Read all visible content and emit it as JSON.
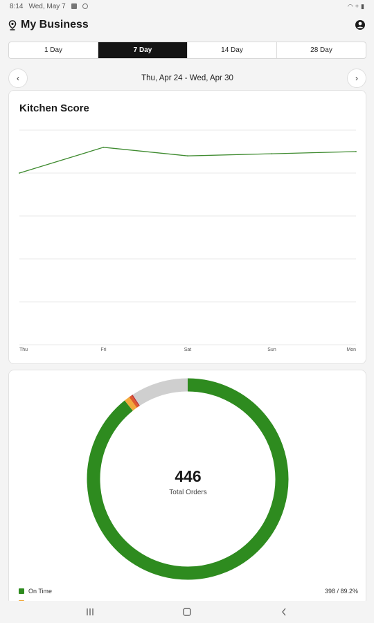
{
  "status": {
    "time": "8:14",
    "date": "Wed, May 7"
  },
  "header": {
    "title": "My Business"
  },
  "tabs": [
    {
      "label": "1 Day",
      "active": false
    },
    {
      "label": "7 Day",
      "active": true
    },
    {
      "label": "14 Day",
      "active": false
    },
    {
      "label": "28 Day",
      "active": false
    }
  ],
  "range": {
    "label": "Thu, Apr 24 - Wed, Apr 30"
  },
  "kitchen_card": {
    "title": "Kitchen Score"
  },
  "orders_card": {
    "total": "446",
    "total_label": "Total Orders",
    "legend": [
      {
        "label": "On Time",
        "value": "398 / 89.2%",
        "color": "#2e8b1f"
      }
    ]
  },
  "chart_data": [
    {
      "type": "line",
      "title": "Kitchen Score",
      "categories": [
        "Thu",
        "Fri",
        "Sat",
        "Sun",
        "Mon"
      ],
      "series": [
        {
          "values": [
            0.8,
            0.92,
            0.88,
            0.89,
            0.9
          ],
          "color": "#3d8a2e"
        }
      ],
      "ylim": [
        0,
        1
      ],
      "grid": true
    },
    {
      "type": "pie",
      "donut": true,
      "total": 446,
      "slices": [
        {
          "label": "On Time",
          "value": 398,
          "color": "#2e8b1f"
        },
        {
          "value": 4,
          "color": "#f2a93b"
        },
        {
          "value": 2,
          "color": "#e05a2b"
        },
        {
          "value": 1,
          "color": "#c23a3a"
        },
        {
          "value": 41,
          "color": "#cfcfcf"
        }
      ]
    }
  ],
  "colors": {
    "accent": "#2e8b1f",
    "active_tab": "#141414"
  }
}
